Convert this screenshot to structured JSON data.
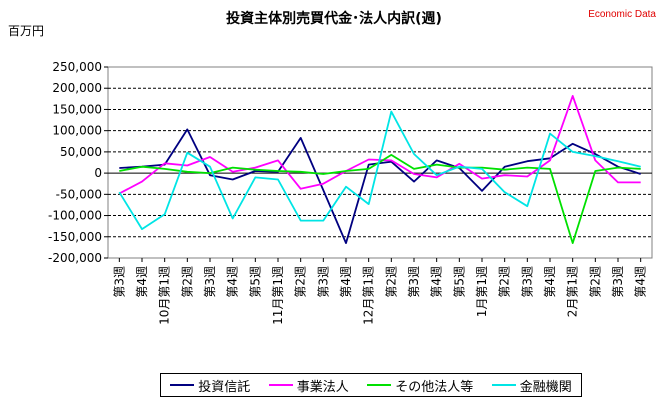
{
  "header": {
    "title": "投資主体別売買代金･法人内訳(週)",
    "brand": "Economic Data",
    "unit": "百万円"
  },
  "chart_data": {
    "type": "line",
    "title": "投資主体別売買代金･法人内訳(週)",
    "ylabel": "百万円",
    "ylim": [
      -200000,
      250000
    ],
    "yticks": [
      250000,
      200000,
      150000,
      100000,
      50000,
      0,
      -50000,
      -100000,
      -150000,
      -200000
    ],
    "ytick_labels": [
      "250,000",
      "200,000",
      "150,000",
      "100,000",
      "50,000",
      "0",
      "-50,000",
      "-100,000",
      "-150,000",
      "-200,000"
    ],
    "categories": [
      "第3週",
      "第4週",
      "10月第1週",
      "第2週",
      "第3週",
      "第4週",
      "第5週",
      "11月第1週",
      "第2週",
      "第3週",
      "第4週",
      "12月第1週",
      "第2週",
      "第3週",
      "第4週",
      "第5週",
      "1月第1週",
      "第2週",
      "第3週",
      "第4週",
      "2月第1週",
      "第2週",
      "第3週",
      "第4週"
    ],
    "grid": true,
    "legend_position": "bottom",
    "series": [
      {
        "name": "投資信託",
        "color": "#000080",
        "values": [
          12000,
          15000,
          20000,
          103000,
          -5000,
          -15000,
          5000,
          3000,
          83000,
          -40000,
          -165000,
          20000,
          27000,
          -20000,
          30000,
          12000,
          -42000,
          15000,
          28000,
          35000,
          69000,
          45000,
          15000,
          -2000
        ]
      },
      {
        "name": "事業法人",
        "color": "#ff00ff",
        "values": [
          -48000,
          -20000,
          23000,
          18000,
          38000,
          3000,
          13000,
          30000,
          -37000,
          -25000,
          5000,
          32000,
          30000,
          -2000,
          -10000,
          22000,
          -13000,
          -5000,
          -8000,
          30000,
          182000,
          30000,
          -22000,
          -22000
        ]
      },
      {
        "name": "その他法人等",
        "color": "#00e000",
        "values": [
          5000,
          15000,
          10000,
          3000,
          0,
          13000,
          8000,
          5000,
          3000,
          -2000,
          5000,
          10000,
          43000,
          10000,
          20000,
          13000,
          13000,
          8000,
          13000,
          10000,
          -165000,
          5000,
          13000,
          10000
        ]
      },
      {
        "name": "金融機関",
        "color": "#00e5e5",
        "values": [
          -45000,
          -132000,
          -97000,
          48000,
          15000,
          -107000,
          -10000,
          -15000,
          -112000,
          -112000,
          -32000,
          -73000,
          145000,
          45000,
          -5000,
          15000,
          10000,
          -45000,
          -78000,
          93000,
          50000,
          40000,
          28000,
          15000
        ]
      }
    ]
  }
}
